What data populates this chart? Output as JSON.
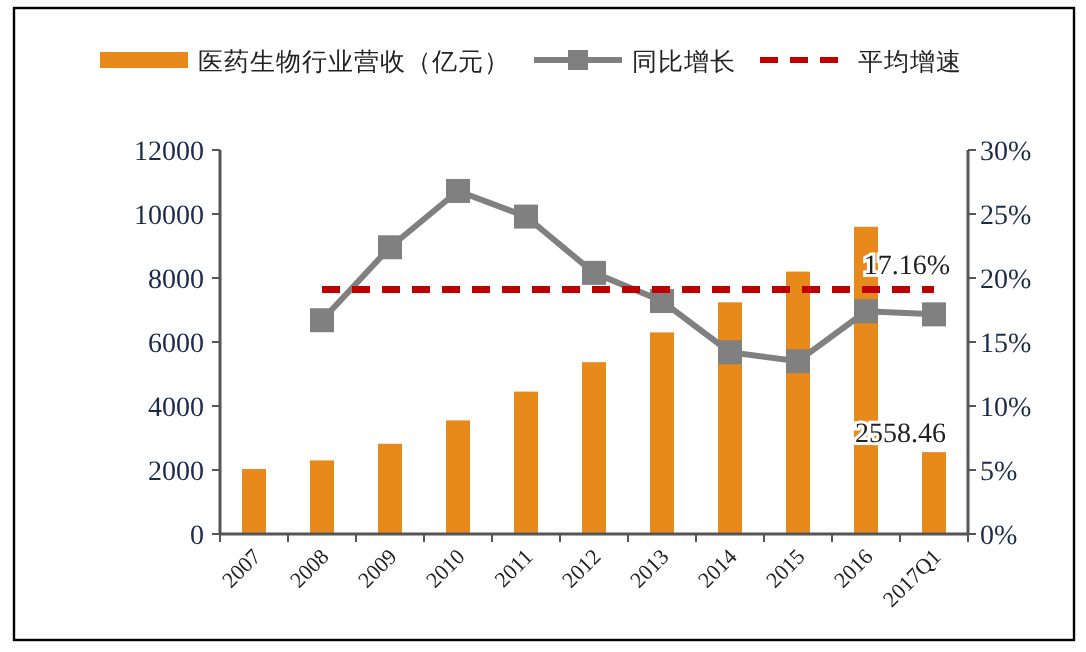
{
  "chart_data": {
    "type": "bar",
    "categories": [
      "2007",
      "2008",
      "2009",
      "2010",
      "2011",
      "2012",
      "2013",
      "2014",
      "2015",
      "2016",
      "2017Q1"
    ],
    "series": [
      {
        "name": "医药生物行业营收（亿元）",
        "color": "#e8891c",
        "values": [
          2030,
          2300,
          2820,
          3550,
          4450,
          5370,
          6300,
          7240,
          8200,
          9600,
          2558.46
        ],
        "value_labels": [
          null,
          null,
          null,
          null,
          null,
          null,
          null,
          null,
          null,
          null,
          "2558.46"
        ]
      },
      {
        "name": "同比增长",
        "type": "line",
        "axis": "y2",
        "color": "#808080",
        "marker": "square",
        "line_style": "solid",
        "values": [
          null,
          16.7,
          22.4,
          26.8,
          24.8,
          20.4,
          18.2,
          14.2,
          13.5,
          17.4,
          17.16
        ],
        "value_labels": [
          null,
          null,
          null,
          null,
          null,
          null,
          null,
          null,
          null,
          null,
          "17.16%"
        ]
      },
      {
        "name": "平均增速",
        "type": "line",
        "axis": "y2",
        "color": "#c00000",
        "marker": "none",
        "line_style": "dashed",
        "values": [
          null,
          19.1,
          19.1,
          19.1,
          19.1,
          19.1,
          19.1,
          19.1,
          19.1,
          19.1,
          19.1
        ]
      }
    ],
    "ylim": [
      0,
      12000
    ],
    "yticks": [
      0,
      2000,
      4000,
      6000,
      8000,
      10000,
      12000
    ],
    "y2lim": [
      0,
      30
    ],
    "y2ticks": [
      {
        "value": 0,
        "label": "0%"
      },
      {
        "value": 5,
        "label": "5%"
      },
      {
        "value": 10,
        "label": "10%"
      },
      {
        "value": 15,
        "label": "15%"
      },
      {
        "value": 20,
        "label": "20%"
      },
      {
        "value": 25,
        "label": "25%"
      },
      {
        "value": 30,
        "label": "30%"
      }
    ],
    "grid": false,
    "legend": "top"
  }
}
